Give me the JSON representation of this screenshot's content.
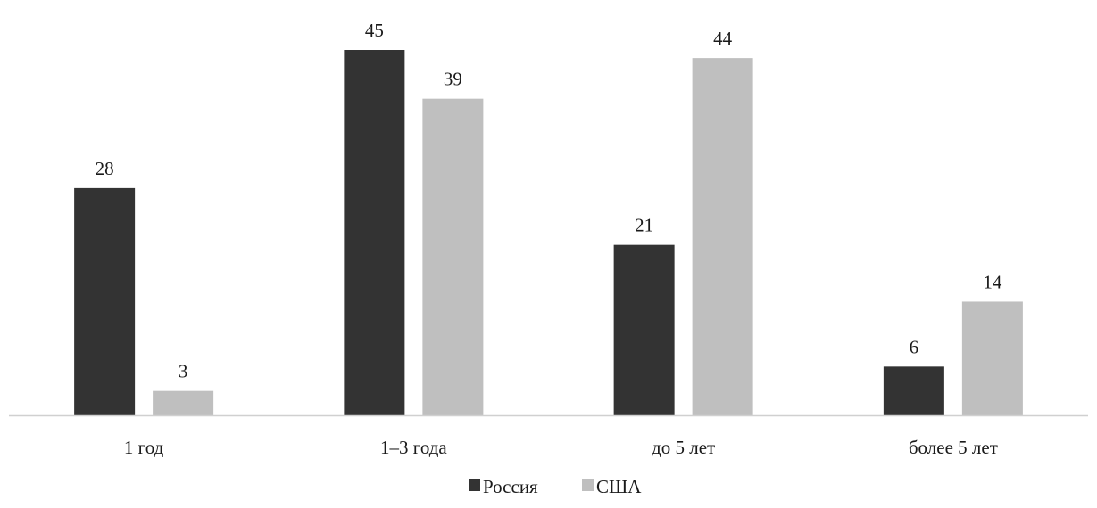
{
  "chart_data": {
    "type": "bar",
    "categories": [
      "1 год",
      "1–3 года",
      "до 5 лет",
      "более 5 лет"
    ],
    "series": [
      {
        "name": "Россия",
        "values": [
          28,
          45,
          21,
          6
        ],
        "color": "#333333"
      },
      {
        "name": "США",
        "values": [
          3,
          39,
          44,
          14
        ],
        "color": "#bfbfbf"
      }
    ],
    "ylim": [
      0,
      45
    ],
    "grid": false,
    "legend_position": "bottom",
    "axis_color": "#d0d0d0"
  }
}
